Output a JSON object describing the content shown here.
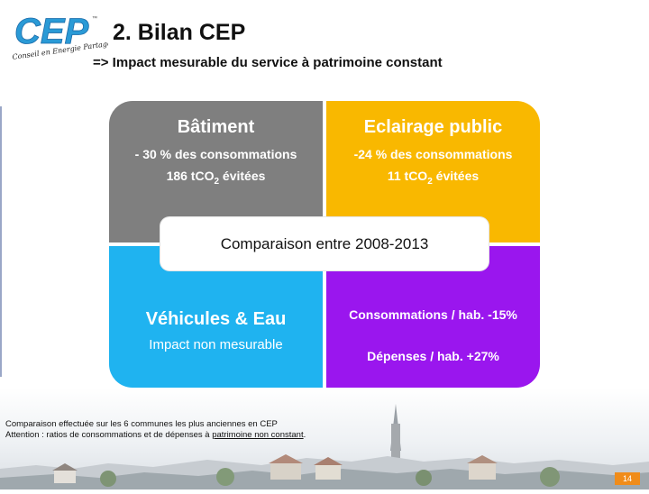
{
  "logo": {
    "brand": "CEP",
    "tm": "™",
    "tagline": "Conseil en Energie Partagé"
  },
  "header": {
    "title": "2. Bilan CEP",
    "subtitle": "=> Impact mesurable du service à patrimoine constant"
  },
  "quadrants": {
    "batiment": {
      "heading": "Bâtiment",
      "line1": "- 30 % des consommations",
      "line2_prefix": "186 tCO",
      "line2_sub": "2",
      "line2_suffix": " évitées"
    },
    "eclairage": {
      "heading": "Eclairage public",
      "line1": "-24 % des consommations",
      "line2_prefix": "11 tCO",
      "line2_sub": "2",
      "line2_suffix": " évitées"
    },
    "vehicules": {
      "heading": "Véhicules & Eau",
      "line1": "Impact non mesurable"
    },
    "ratios": {
      "line1": "Consommations / hab.   -15%",
      "line2": "Dépenses / hab.   +27%"
    }
  },
  "center_label": "Comparaison entre 2008-2013",
  "footnote": {
    "line1": "Comparaison effectuée sur les 6 communes les plus anciennes en CEP",
    "line2_prefix": "Attention : ratios de consommations et de dépenses à ",
    "line2_underlined": "patrimoine non constant",
    "line2_suffix": "."
  },
  "page_number": "14",
  "colors": {
    "gray": "#7f7f7f",
    "orange": "#f9b800",
    "blue": "#1fb3f0",
    "purple": "#9a16ee",
    "page_badge": "#f08c1a"
  }
}
